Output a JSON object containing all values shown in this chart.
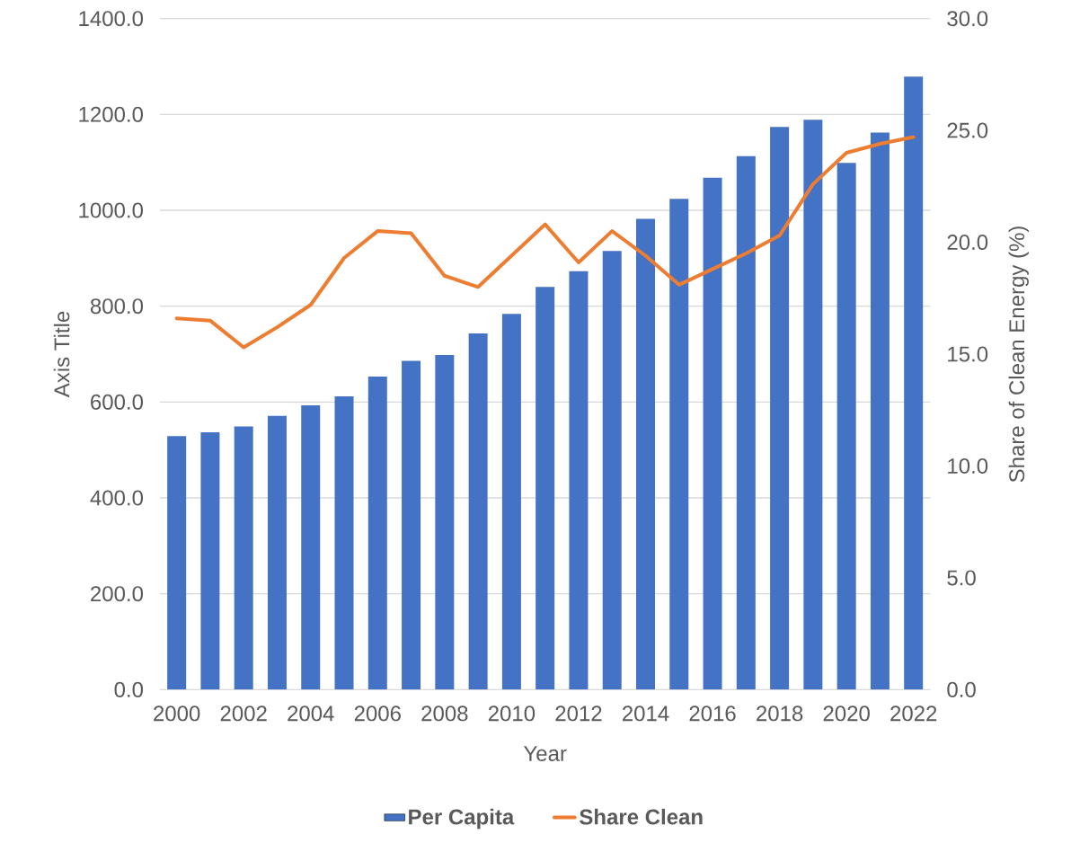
{
  "chart_data": {
    "type": "bar",
    "categories": [
      "2000",
      null,
      "2002",
      null,
      "2004",
      null,
      "2006",
      null,
      "2008",
      null,
      "2010",
      null,
      "2012",
      null,
      "2014",
      null,
      "2016",
      null,
      "2018",
      null,
      "2020",
      null,
      "2022"
    ],
    "series": [
      {
        "name": "Per Capita",
        "color": "#4472c4",
        "values": [
          529,
          537,
          549,
          571,
          593,
          612,
          653,
          686,
          698,
          743,
          784,
          840,
          873,
          915,
          982,
          1024,
          1068,
          1113,
          1174,
          1189,
          1099,
          1162,
          1279
        ]
      },
      {
        "name": "Share Clean",
        "type": "line",
        "axis": "y2",
        "color": "#ed7d31",
        "values": [
          16.6,
          16.5,
          15.3,
          16.2,
          17.2,
          19.3,
          20.5,
          20.4,
          18.5,
          18.0,
          19.4,
          20.8,
          19.1,
          20.5,
          19.4,
          18.1,
          18.8,
          19.5,
          20.3,
          22.6,
          24.0,
          24.4,
          24.7
        ]
      }
    ],
    "xlabel": "Year",
    "ylabel": "Axis Title",
    "y2label": "Share of Clean Energy (%)",
    "ylim": [
      0,
      1400
    ],
    "yticks": [
      {
        "value": 0,
        "label": "0.0"
      },
      {
        "value": 200,
        "label": "200.0"
      },
      {
        "value": 400,
        "label": "400.0"
      },
      {
        "value": 600,
        "label": "600.0"
      },
      {
        "value": 800,
        "label": "800.0"
      },
      {
        "value": 1000,
        "label": "1000.0"
      },
      {
        "value": 1200,
        "label": "1200.0"
      },
      {
        "value": 1400,
        "label": "1400.0"
      }
    ],
    "y2lim": [
      0,
      30
    ],
    "y2ticks": [
      {
        "value": 0,
        "label": "0.0"
      },
      {
        "value": 5,
        "label": "5.0"
      },
      {
        "value": 10,
        "label": "10.0"
      },
      {
        "value": 15,
        "label": "15.0"
      },
      {
        "value": 20,
        "label": "20.0"
      },
      {
        "value": 25,
        "label": "25.0"
      },
      {
        "value": 30,
        "label": "30.0"
      }
    ],
    "grid": "y",
    "legend": "bottom",
    "marker": "none",
    "line_style": "solid"
  }
}
